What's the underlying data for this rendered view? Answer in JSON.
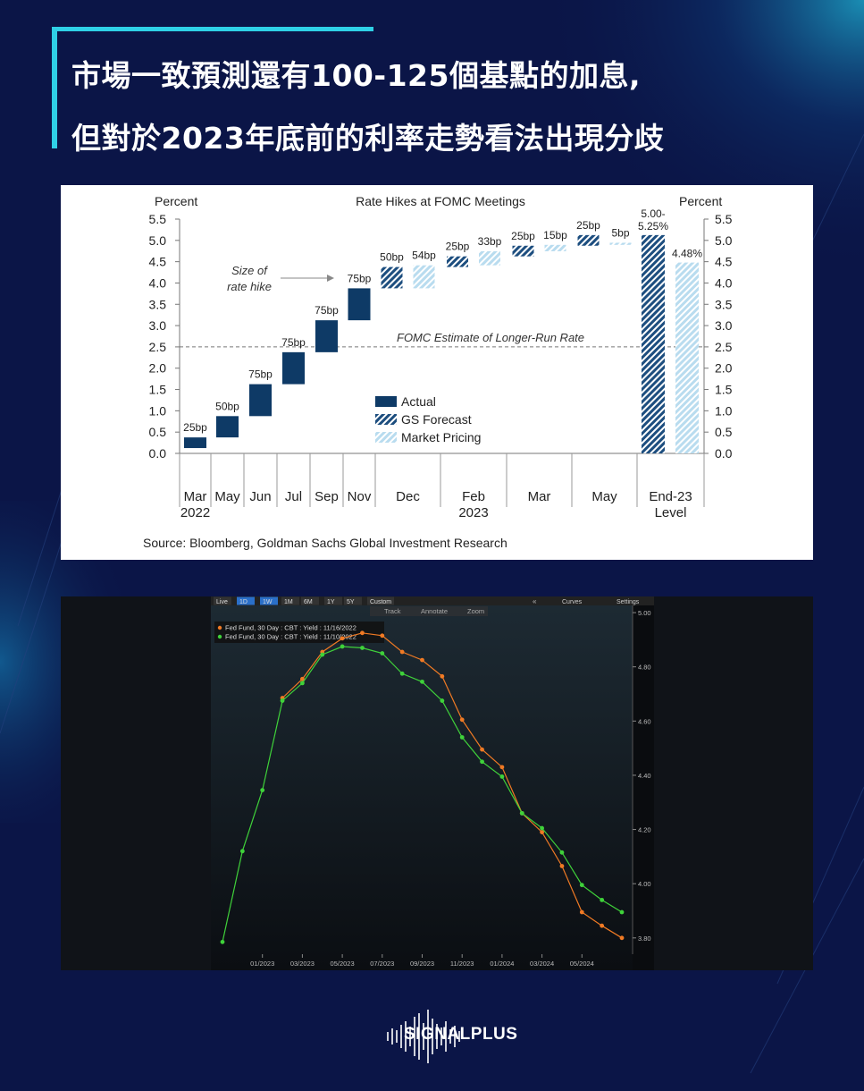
{
  "header": {
    "title_line1": "市場一致預測還有100-125個基點的加息,",
    "title_line2": "但對於2023年底前的利率走勢看法出現分歧"
  },
  "chart1": {
    "title": "Rate Hikes at FOMC Meetings",
    "left_axis_label": "Percent",
    "right_axis_label": "Percent",
    "annotation_hike": "Size of rate hike",
    "annotation_hike_line1": "Size of",
    "annotation_hike_line2": "rate hike",
    "annotation_longrun": "FOMC Estimate of Longer-Run Rate",
    "source": "Source: Bloomberg, Goldman Sachs Global Investment Research",
    "legend": [
      "Actual",
      "GS Forecast",
      "Market Pricing"
    ],
    "colors": {
      "actual": "#0e3a66",
      "gs": "#1d4e7f",
      "market": "#b9dcef"
    }
  },
  "chart2": {
    "toolbar": {
      "buttons": [
        "Live",
        "1D",
        "1W",
        "1M",
        "6M",
        "1Y",
        "5Y",
        "Custom"
      ],
      "collapse": "«",
      "curves": "Curves",
      "settings": "Settings",
      "track": "Track",
      "annotate": "Annotate",
      "zoom": "Zoom"
    },
    "colors": {
      "series1": "#f07a24",
      "series2": "#3fd23a"
    }
  },
  "brand": {
    "name": "SIGNALPLUS"
  },
  "chart_data": [
    {
      "type": "bar",
      "title": "Rate Hikes at FOMC Meetings",
      "ylabel": "Percent",
      "ylim": [
        0,
        5.5
      ],
      "yticks": [
        "0.0",
        "0.5",
        "1.0",
        "1.5",
        "2.0",
        "2.5",
        "3.0",
        "3.5",
        "4.0",
        "4.5",
        "5.0",
        "5.5"
      ],
      "longer_run_rate": 2.5,
      "categories": [
        {
          "label": "Mar",
          "sub": "2022"
        },
        {
          "label": "May"
        },
        {
          "label": "Jun"
        },
        {
          "label": "Jul"
        },
        {
          "label": "Sep"
        },
        {
          "label": "Nov"
        },
        {
          "label": "Dec"
        },
        {
          "label": "Feb",
          "sub": "2023"
        },
        {
          "label": "Mar"
        },
        {
          "label": "May"
        },
        {
          "label": "End-23",
          "sub": "Level"
        }
      ],
      "series": [
        {
          "name": "Actual",
          "bars": [
            {
              "group": 0,
              "base": 0.125,
              "top": 0.375,
              "label": "25bp"
            },
            {
              "group": 1,
              "base": 0.375,
              "top": 0.875,
              "label": "50bp"
            },
            {
              "group": 2,
              "base": 0.875,
              "top": 1.625,
              "label": "75bp"
            },
            {
              "group": 3,
              "base": 1.625,
              "top": 2.375,
              "label": "75bp"
            },
            {
              "group": 4,
              "base": 2.375,
              "top": 3.125,
              "label": "75bp"
            },
            {
              "group": 5,
              "base": 3.125,
              "top": 3.875,
              "label": "75bp"
            }
          ]
        },
        {
          "name": "GS Forecast",
          "bars": [
            {
              "group": 6,
              "base": 3.875,
              "top": 4.375,
              "label": "50bp"
            },
            {
              "group": 7,
              "base": 4.375,
              "top": 4.625,
              "label": "25bp"
            },
            {
              "group": 8,
              "base": 4.625,
              "top": 4.875,
              "label": "25bp"
            },
            {
              "group": 9,
              "base": 4.875,
              "top": 5.125,
              "label": "25bp"
            },
            {
              "group": 10,
              "base": 0,
              "top": 5.125,
              "label": "5.00-\n5.25%"
            }
          ]
        },
        {
          "name": "Market Pricing",
          "bars": [
            {
              "group": 6,
              "base": 3.875,
              "top": 4.415,
              "label": "54bp"
            },
            {
              "group": 7,
              "base": 4.415,
              "top": 4.745,
              "label": "33bp"
            },
            {
              "group": 8,
              "base": 4.745,
              "top": 4.895,
              "label": "15bp"
            },
            {
              "group": 9,
              "base": 4.895,
              "top": 4.945,
              "label": "5bp"
            },
            {
              "group": 10,
              "base": 0,
              "top": 4.48,
              "label": "4.48%"
            }
          ]
        }
      ]
    },
    {
      "type": "line",
      "ylim": [
        3.74,
        5.02
      ],
      "yticks": [
        "5.00",
        "4.80",
        "4.60",
        "4.40",
        "4.20",
        "4.00",
        "3.80"
      ],
      "xticks": [
        "01/2023",
        "03/2023",
        "05/2023",
        "07/2023",
        "09/2023",
        "11/2023",
        "01/2024",
        "03/2024",
        "05/2024"
      ],
      "x": [
        "11/2022",
        "12/2022",
        "01/2023",
        "02/2023",
        "03/2023",
        "04/2023",
        "05/2023",
        "06/2023",
        "07/2023",
        "08/2023",
        "09/2023",
        "10/2023",
        "11/2023",
        "12/2023",
        "01/2024",
        "02/2024",
        "03/2024",
        "04/2024",
        "05/2024",
        "06/2024",
        "07/2024"
      ],
      "series": [
        {
          "name": "Fed Fund, 30 Day : CBT : Yield : 11/16/2022",
          "values": [
            null,
            null,
            null,
            4.685,
            4.755,
            4.855,
            4.905,
            4.925,
            4.915,
            4.855,
            4.825,
            4.765,
            4.605,
            4.495,
            4.43,
            4.26,
            4.19,
            4.065,
            3.895,
            3.845,
            3.8
          ]
        },
        {
          "name": "Fed Fund, 30 Day : CBT : Yield : 11/10/2022",
          "values": [
            3.785,
            4.12,
            4.345,
            4.675,
            4.74,
            4.845,
            4.875,
            4.87,
            4.85,
            4.775,
            4.745,
            4.675,
            4.54,
            4.45,
            4.395,
            4.26,
            4.205,
            4.115,
            3.995,
            3.94,
            3.895
          ]
        }
      ]
    }
  ]
}
